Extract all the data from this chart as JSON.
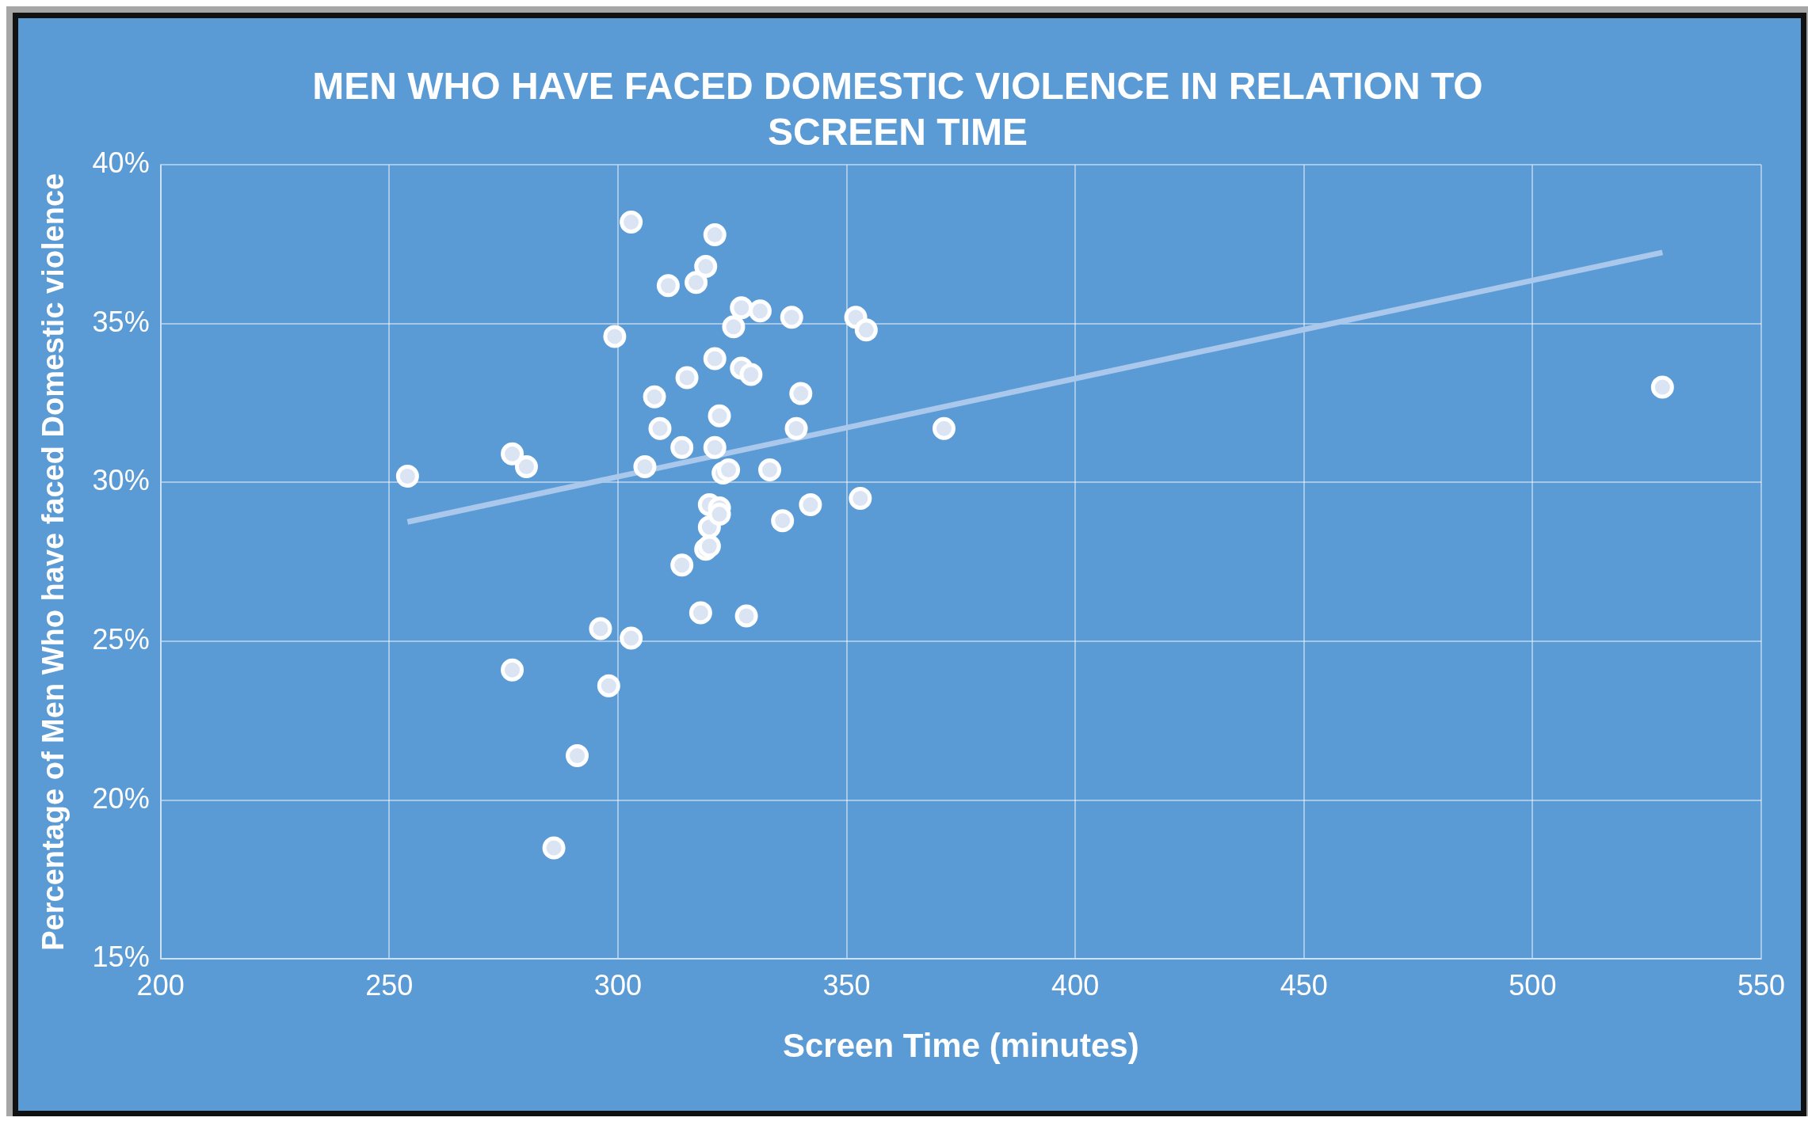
{
  "chart_data": {
    "type": "scatter",
    "title": "MEN WHO HAVE FACED DOMESTIC VIOLENCE IN RELATION TO SCREEN TIME",
    "xlabel": "Screen Time (minutes)",
    "ylabel": "Percentage of Men Who have faced Domestic violence",
    "xlim": [
      200,
      550
    ],
    "xticks": [
      200,
      250,
      300,
      350,
      400,
      450,
      500,
      550
    ],
    "ylim": [
      15,
      40
    ],
    "yticks": [
      {
        "value": 15,
        "label": "15%"
      },
      {
        "value": 20,
        "label": "20%"
      },
      {
        "value": 25,
        "label": "25%"
      },
      {
        "value": 30,
        "label": "30%"
      },
      {
        "value": 35,
        "label": "35%"
      },
      {
        "value": 40,
        "label": "40%"
      }
    ],
    "grid": true,
    "legend": false,
    "series": [
      {
        "marker": "circle",
        "color": "#ffffff",
        "x": [
          254,
          276.9,
          280,
          276.9,
          286,
          291.1,
          296.2,
          298,
          299.3,
          302.9,
          302.9,
          305.9,
          308,
          309.2,
          311,
          314,
          314,
          315.1,
          317.1,
          318.1,
          319.2,
          319.2,
          320,
          320,
          320,
          321.2,
          321.2,
          321.2,
          322.2,
          322.2,
          322.2,
          323,
          324.2,
          325.3,
          327,
          327,
          328.1,
          329.1,
          331.1,
          333.2,
          336,
          338,
          339,
          340,
          342.1,
          352,
          353,
          354.3,
          371.3,
          528.4
        ],
        "values": [
          30.2,
          30.9,
          30.5,
          24.1,
          18.5,
          21.4,
          25.4,
          23.6,
          34.6,
          38.2,
          25.1,
          30.5,
          32.7,
          31.7,
          36.2,
          31.1,
          27.4,
          33.3,
          36.3,
          25.9,
          36.8,
          27.9,
          28.0,
          28.6,
          29.3,
          37.8,
          33.9,
          31.1,
          32.1,
          29.2,
          29.0,
          30.3,
          30.4,
          34.9,
          35.5,
          33.6,
          25.8,
          33.4,
          35.4,
          30.4,
          28.8,
          35.2,
          31.7,
          32.8,
          29.3,
          35.2,
          29.5,
          34.8,
          31.7,
          33.0
        ]
      },
      {
        "type": "line",
        "marker": "none",
        "color": "#a9c8ec",
        "x": [
          254,
          528.4
        ],
        "values": [
          28.76,
          37.24
        ]
      }
    ]
  }
}
